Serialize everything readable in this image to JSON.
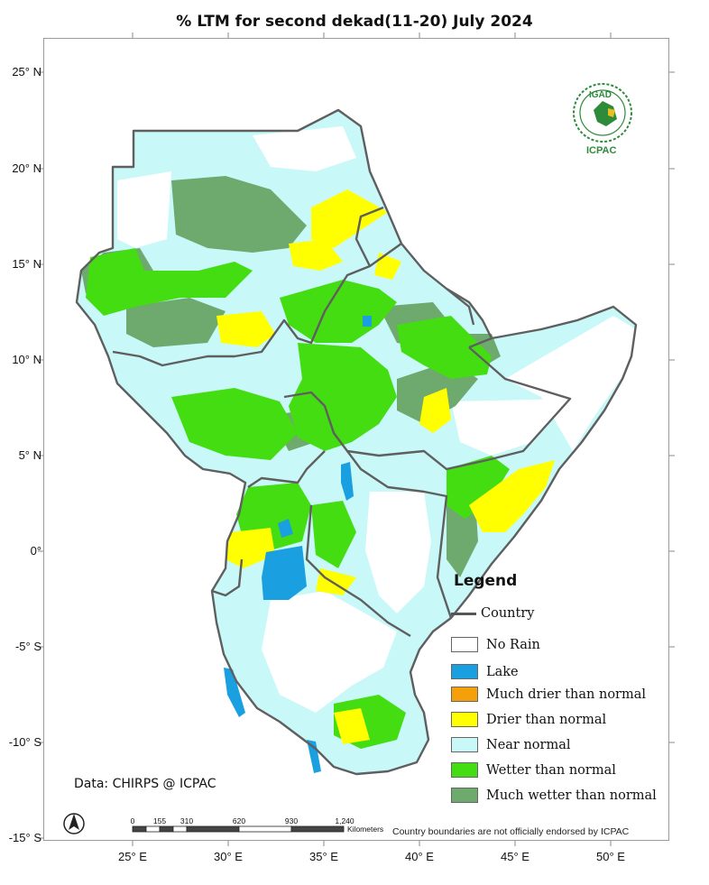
{
  "title": "% LTM  for second dekad(11-20) July 2024",
  "axes": {
    "y_ticks": [
      "25° N",
      "20° N",
      "15° N",
      "10° N",
      "5° N",
      "0°",
      "-5° S",
      "-10° S",
      "-15° S"
    ],
    "x_ticks": [
      "25° E",
      "30° E",
      "35° E",
      "40° E",
      "45° E",
      "50° E"
    ]
  },
  "legend": {
    "title": "Legend",
    "country_label": "Country",
    "items": [
      {
        "label": "No Rain",
        "color": "#ffffff"
      },
      {
        "label": "Lake",
        "color": "#1aa0e0"
      },
      {
        "label": "Much drier than normal",
        "color": "#f5a00a"
      },
      {
        "label": "Drier than normal",
        "color": "#ffff00"
      },
      {
        "label": "Near normal",
        "color": "#c8f8f8"
      },
      {
        "label": "Wetter than normal",
        "color": "#44dd11"
      },
      {
        "label": "Much wetter than normal",
        "color": "#6ea96e"
      }
    ]
  },
  "source": "Data: CHIRPS @ ICPAC",
  "scale_bar": {
    "ticks": [
      "0",
      "155",
      "310",
      "620",
      "930",
      "1,240"
    ],
    "unit": "Kilometers"
  },
  "disclaimer": "Country boundaries are not officially endorsed by ICPAC",
  "logo": {
    "top_text": "IGAD",
    "bottom_text": "ICPAC",
    "color": "#2e8b3a"
  }
}
